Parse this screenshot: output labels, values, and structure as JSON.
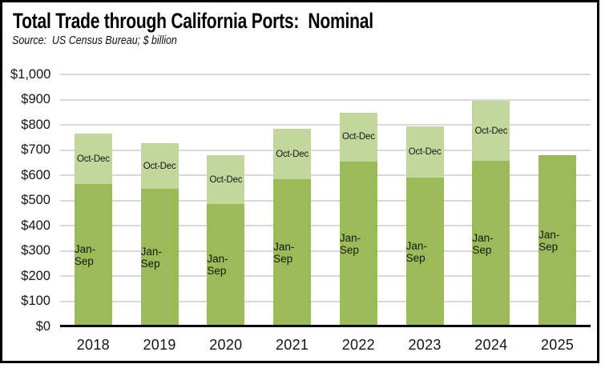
{
  "colors": {
    "jan_sep": "#9bbb59",
    "oct_dec": "#c3d69b",
    "gridline": "#d9d9d9",
    "axis": "#000000",
    "border": "#000000",
    "background": "#ffffff"
  },
  "chart_data": {
    "type": "bar",
    "stacked": true,
    "title": "Total Trade through California Ports:  Nominal",
    "subtitle": "Source:  US Census Bureau; $ billion",
    "categories": [
      "2018",
      "2019",
      "2020",
      "2021",
      "2022",
      "2023",
      "2024",
      "2025"
    ],
    "series": [
      {
        "name": "Jan-Sep",
        "color": "#9bbb59",
        "values": [
          565,
          545,
          487,
          583,
          654,
          591,
          657,
          681
        ]
      },
      {
        "name": "Oct-Dec",
        "color": "#c3d69b",
        "values": [
          199,
          181,
          191,
          202,
          195,
          204,
          237,
          0
        ]
      }
    ],
    "totals": [
      764,
      726,
      678,
      785,
      849,
      795,
      894,
      681
    ],
    "ylim": [
      0,
      1000
    ],
    "ytick_step": 100,
    "ytick_labels": [
      "$0",
      "$100",
      "$200",
      "$300",
      "$400",
      "$500",
      "$600",
      "$700",
      "$800",
      "$900",
      "$1,000"
    ],
    "grid": true,
    "legend_position": "none",
    "segment_labels_inside_bars": true
  }
}
